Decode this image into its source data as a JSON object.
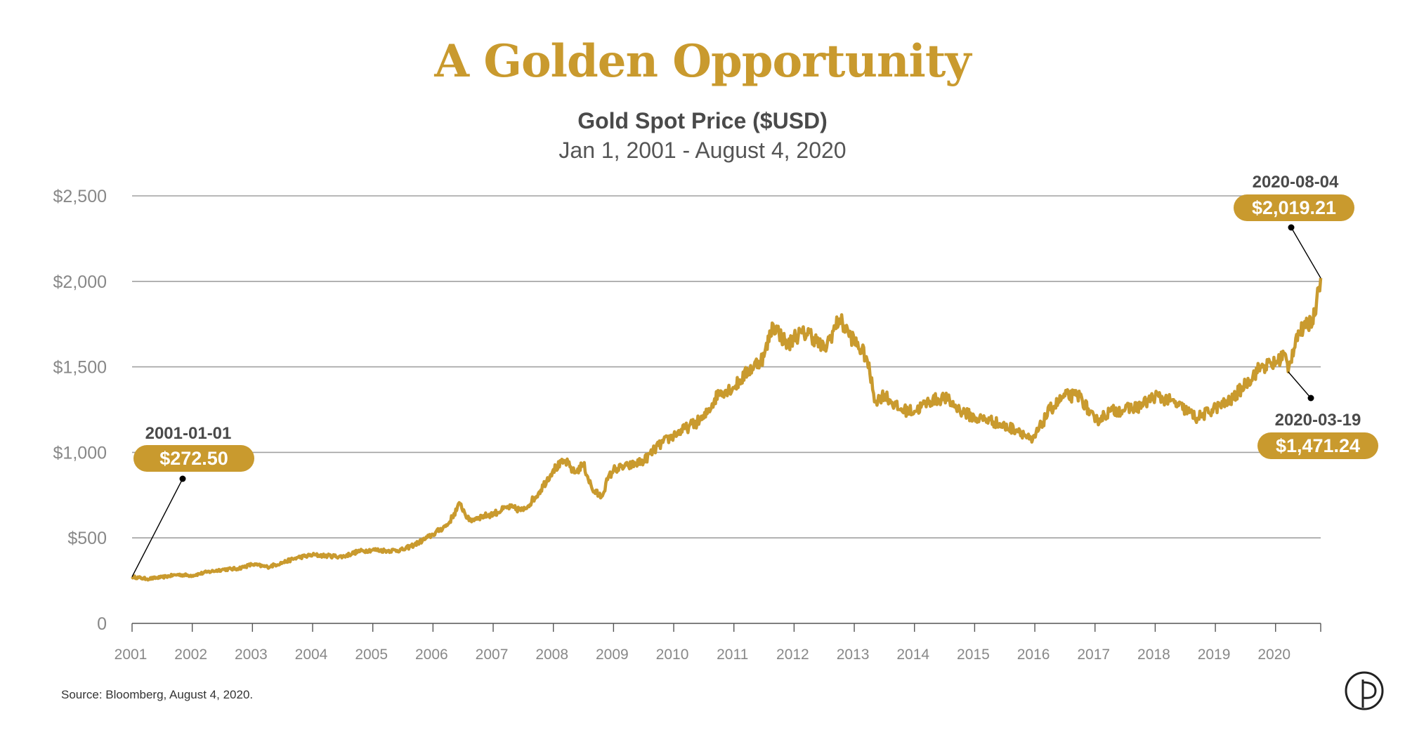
{
  "title": "A Golden Opportunity",
  "subtitle": "Gold Spot Price ($USD)",
  "date_range": "Jan 1, 2001 - August 4, 2020",
  "source": "Source: Bloomberg, August 4, 2020.",
  "colors": {
    "gold": "#c99a2e",
    "grid": "#a0a0a0",
    "text": "#4a4a4a",
    "axis_label": "#888888"
  },
  "logo_icon": "p-circle-logo-icon",
  "chart_data": {
    "type": "line",
    "title": "Gold Spot Price ($USD)",
    "subtitle": "Jan 1, 2001 - August 4, 2020",
    "ylim": [
      0,
      2500
    ],
    "xlim": [
      2001,
      2020.75
    ],
    "y_ticks": [
      {
        "value": 2500,
        "label": "$2,500"
      },
      {
        "value": 2000,
        "label": "$2,000"
      },
      {
        "value": 1500,
        "label": "$1,500"
      },
      {
        "value": 1000,
        "label": "$1,000"
      },
      {
        "value": 500,
        "label": "$500"
      },
      {
        "value": 0,
        "label": "0"
      }
    ],
    "x_ticks": [
      {
        "value": 2001,
        "label": "2001"
      },
      {
        "value": 2002,
        "label": "2002"
      },
      {
        "value": 2003,
        "label": "2003"
      },
      {
        "value": 2004,
        "label": "2004"
      },
      {
        "value": 2005,
        "label": "2005"
      },
      {
        "value": 2006,
        "label": "2006"
      },
      {
        "value": 2007,
        "label": "2007"
      },
      {
        "value": 2008,
        "label": "2008"
      },
      {
        "value": 2009,
        "label": "2009"
      },
      {
        "value": 2010,
        "label": "2010"
      },
      {
        "value": 2011,
        "label": "2011"
      },
      {
        "value": 2012,
        "label": "2012"
      },
      {
        "value": 2013,
        "label": "2013"
      },
      {
        "value": 2014,
        "label": "2014"
      },
      {
        "value": 2015,
        "label": "2015"
      },
      {
        "value": 2016,
        "label": "2016"
      },
      {
        "value": 2017,
        "label": "2017"
      },
      {
        "value": 2018,
        "label": "2018"
      },
      {
        "value": 2019,
        "label": "2019"
      },
      {
        "value": 2020,
        "label": "2020"
      }
    ],
    "grid": true,
    "series": [
      {
        "x": [
          2001.0,
          2001.25,
          2001.5,
          2001.75,
          2002.0,
          2002.25,
          2002.5,
          2002.75,
          2003.0,
          2003.25,
          2003.5,
          2003.75,
          2004.0,
          2004.25,
          2004.5,
          2004.75,
          2005.0,
          2005.25,
          2005.5,
          2005.75,
          2006.0,
          2006.25,
          2006.45,
          2006.6,
          2006.75,
          2007.0,
          2007.25,
          2007.5,
          2007.75,
          2008.0,
          2008.2,
          2008.35,
          2008.5,
          2008.65,
          2008.8,
          2008.9,
          2009.0,
          2009.25,
          2009.5,
          2009.75,
          2010.0,
          2010.25,
          2010.5,
          2010.75,
          2011.0,
          2011.25,
          2011.5,
          2011.65,
          2011.75,
          2011.9,
          2012.0,
          2012.25,
          2012.5,
          2012.75,
          2012.9,
          2013.0,
          2013.2,
          2013.35,
          2013.5,
          2013.75,
          2014.0,
          2014.25,
          2014.5,
          2014.75,
          2015.0,
          2015.25,
          2015.5,
          2015.75,
          2015.95,
          2016.25,
          2016.5,
          2016.75,
          2017.0,
          2017.25,
          2017.5,
          2017.75,
          2018.0,
          2018.25,
          2018.5,
          2018.7,
          2019.0,
          2019.25,
          2019.5,
          2019.75,
          2020.0,
          2020.15,
          2020.21,
          2020.35,
          2020.5,
          2020.65,
          2020.7,
          2020.75
        ],
        "y": [
          272.5,
          260,
          270,
          285,
          280,
          300,
          315,
          320,
          345,
          330,
          355,
          385,
          400,
          395,
          390,
          420,
          430,
          425,
          430,
          470,
          520,
          580,
          700,
          600,
          620,
          640,
          680,
          660,
          760,
          900,
          950,
          880,
          930,
          780,
          740,
          840,
          900,
          920,
          950,
          1040,
          1100,
          1150,
          1200,
          1350,
          1380,
          1480,
          1560,
          1750,
          1700,
          1620,
          1680,
          1700,
          1600,
          1780,
          1700,
          1650,
          1560,
          1300,
          1340,
          1250,
          1240,
          1300,
          1320,
          1250,
          1200,
          1190,
          1150,
          1130,
          1060,
          1250,
          1330,
          1330,
          1180,
          1240,
          1250,
          1270,
          1330,
          1300,
          1250,
          1200,
          1260,
          1300,
          1400,
          1500,
          1520,
          1580,
          1471.24,
          1690,
          1730,
          1800,
          1960,
          2019.21
        ]
      }
    ],
    "annotations": [
      {
        "date": "2001-01-01",
        "value_label": "$272.50",
        "x": 2001.0,
        "y": 272.5
      },
      {
        "date": "2020-08-04",
        "value_label": "$2,019.21",
        "x": 2020.75,
        "y": 2019.21
      },
      {
        "date": "2020-03-19",
        "value_label": "$1,471.24",
        "x": 2020.21,
        "y": 1471.24
      }
    ]
  }
}
